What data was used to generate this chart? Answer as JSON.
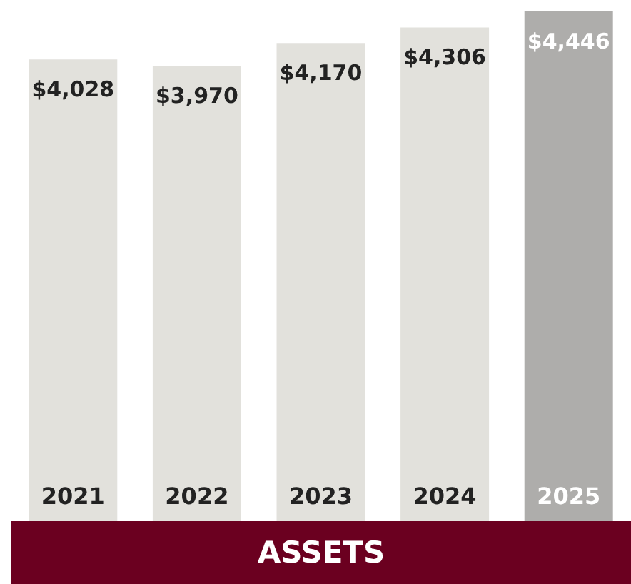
{
  "chart_data": {
    "type": "bar",
    "title": "ASSETS",
    "categories": [
      "2021",
      "2022",
      "2023",
      "2024",
      "2025"
    ],
    "values": [
      4028,
      3970,
      4170,
      4306,
      4446
    ],
    "value_labels": [
      "$4,028",
      "$3,970",
      "$4,170",
      "$4,306",
      "$4,446"
    ],
    "colors": [
      "#e2e1dc",
      "#e2e1dc",
      "#e2e1dc",
      "#e2e1dc",
      "#aeadab"
    ],
    "grid": false,
    "legend": false
  }
}
